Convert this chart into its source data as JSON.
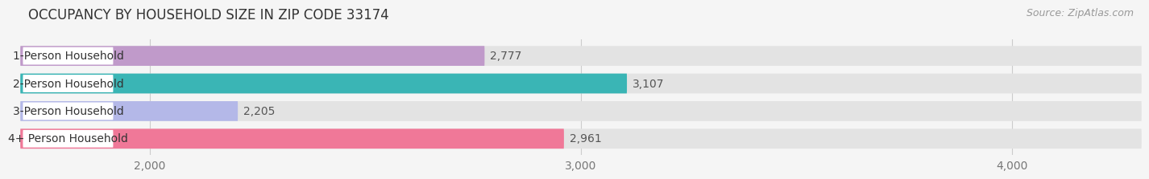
{
  "title": "OCCUPANCY BY HOUSEHOLD SIZE IN ZIP CODE 33174",
  "source": "Source: ZipAtlas.com",
  "categories": [
    "1-Person Household",
    "2-Person Household",
    "3-Person Household",
    "4+ Person Household"
  ],
  "values": [
    2777,
    3107,
    2205,
    2961
  ],
  "bar_colors": [
    "#c09aca",
    "#3ab5b5",
    "#b4b8e8",
    "#f07898"
  ],
  "bar_bg_color": "#e5e5e5",
  "xlim": [
    1700,
    4300
  ],
  "xticks": [
    2000,
    3000,
    4000
  ],
  "xtick_labels": [
    "2,000",
    "3,000",
    "4,000"
  ],
  "value_labels": [
    "2,777",
    "3,107",
    "2,205",
    "2,961"
  ],
  "background_color": "#f5f5f5",
  "bar_background_color": "#e3e3e3",
  "title_fontsize": 12,
  "source_fontsize": 9,
  "tick_fontsize": 10,
  "bar_label_fontsize": 10,
  "value_fontsize": 10
}
